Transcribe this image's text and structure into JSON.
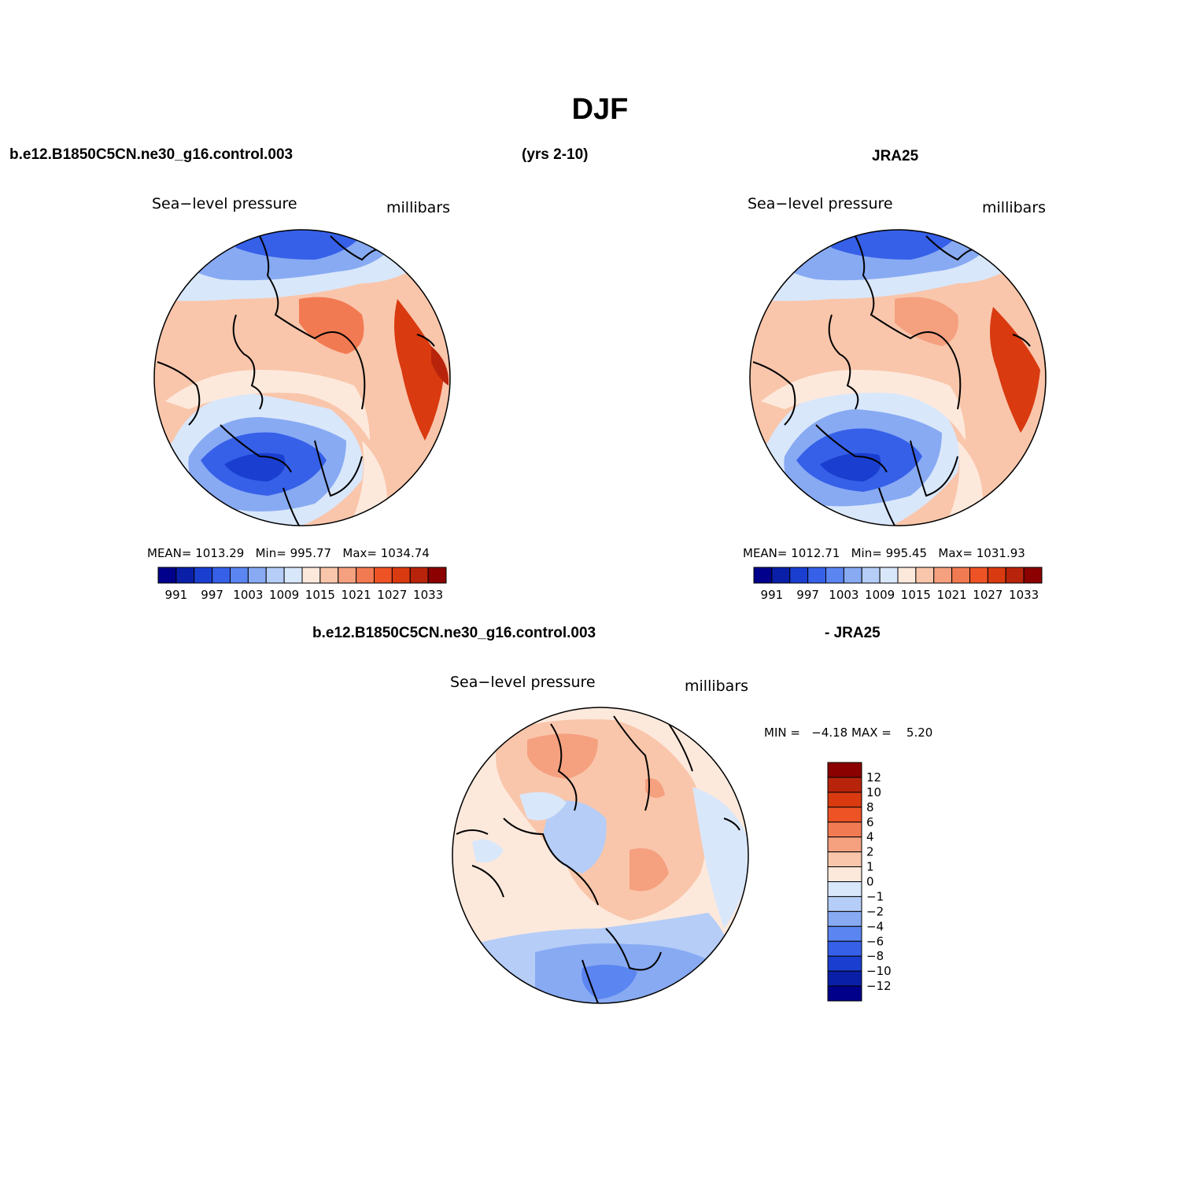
{
  "season_title": "DJF",
  "top_header": {
    "case_name": "b.e12.B1850C5CN.ne30_g16.control.003",
    "years": "(yrs 2-10)",
    "obs_name": "JRA25"
  },
  "left_panel": {
    "variable": "Sea−level pressure",
    "units": "millibars",
    "mean_label": "MEAN=",
    "mean_value": "1013.29",
    "min_label": "Min=",
    "min_value": "995.77",
    "max_label": "Max=",
    "max_value": "1034.74"
  },
  "right_panel": {
    "variable": "Sea−level pressure",
    "units": "millibars",
    "mean_label": "MEAN=",
    "mean_value": "1012.71",
    "min_label": "Min=",
    "min_value": "995.45",
    "max_label": "Max=",
    "max_value": "1031.93"
  },
  "abs_colorbar": {
    "colors": [
      "#00008b",
      "#0a1fa8",
      "#1a3fd0",
      "#3660e8",
      "#5b85f0",
      "#88aaf3",
      "#b5cdf7",
      "#d9e7fb",
      "#fde9dc",
      "#f9c6ab",
      "#f5a07f",
      "#f27a52",
      "#ee5326",
      "#d93a10",
      "#b8240b",
      "#8b0000"
    ],
    "labels": [
      "991",
      "997",
      "1003",
      "1009",
      "1015",
      "1021",
      "1027",
      "1033"
    ]
  },
  "diff_header": {
    "case_name": "b.e12.B1850C5CN.ne30_g16.control.003",
    "obs_name": "- JRA25"
  },
  "diff_panel": {
    "variable": "Sea−level pressure",
    "units": "millibars",
    "min_label": "MIN =",
    "min_value": "−4.18",
    "max_label": "MAX =",
    "max_value": "5.20"
  },
  "diff_colorbar": {
    "colors": [
      "#8b0000",
      "#b8240b",
      "#d93a10",
      "#ee5326",
      "#f27a52",
      "#f5a07f",
      "#f9c6ab",
      "#fde9dc",
      "#d9e7fb",
      "#b5cdf7",
      "#88aaf3",
      "#5b85f0",
      "#3660e8",
      "#1a3fd0",
      "#0a1fa8",
      "#00008b"
    ],
    "labels": [
      "12",
      "10",
      "8",
      "6",
      "4",
      "2",
      "1",
      "0",
      "−1",
      "−2",
      "−4",
      "−6",
      "−8",
      "−10",
      "−12"
    ]
  }
}
